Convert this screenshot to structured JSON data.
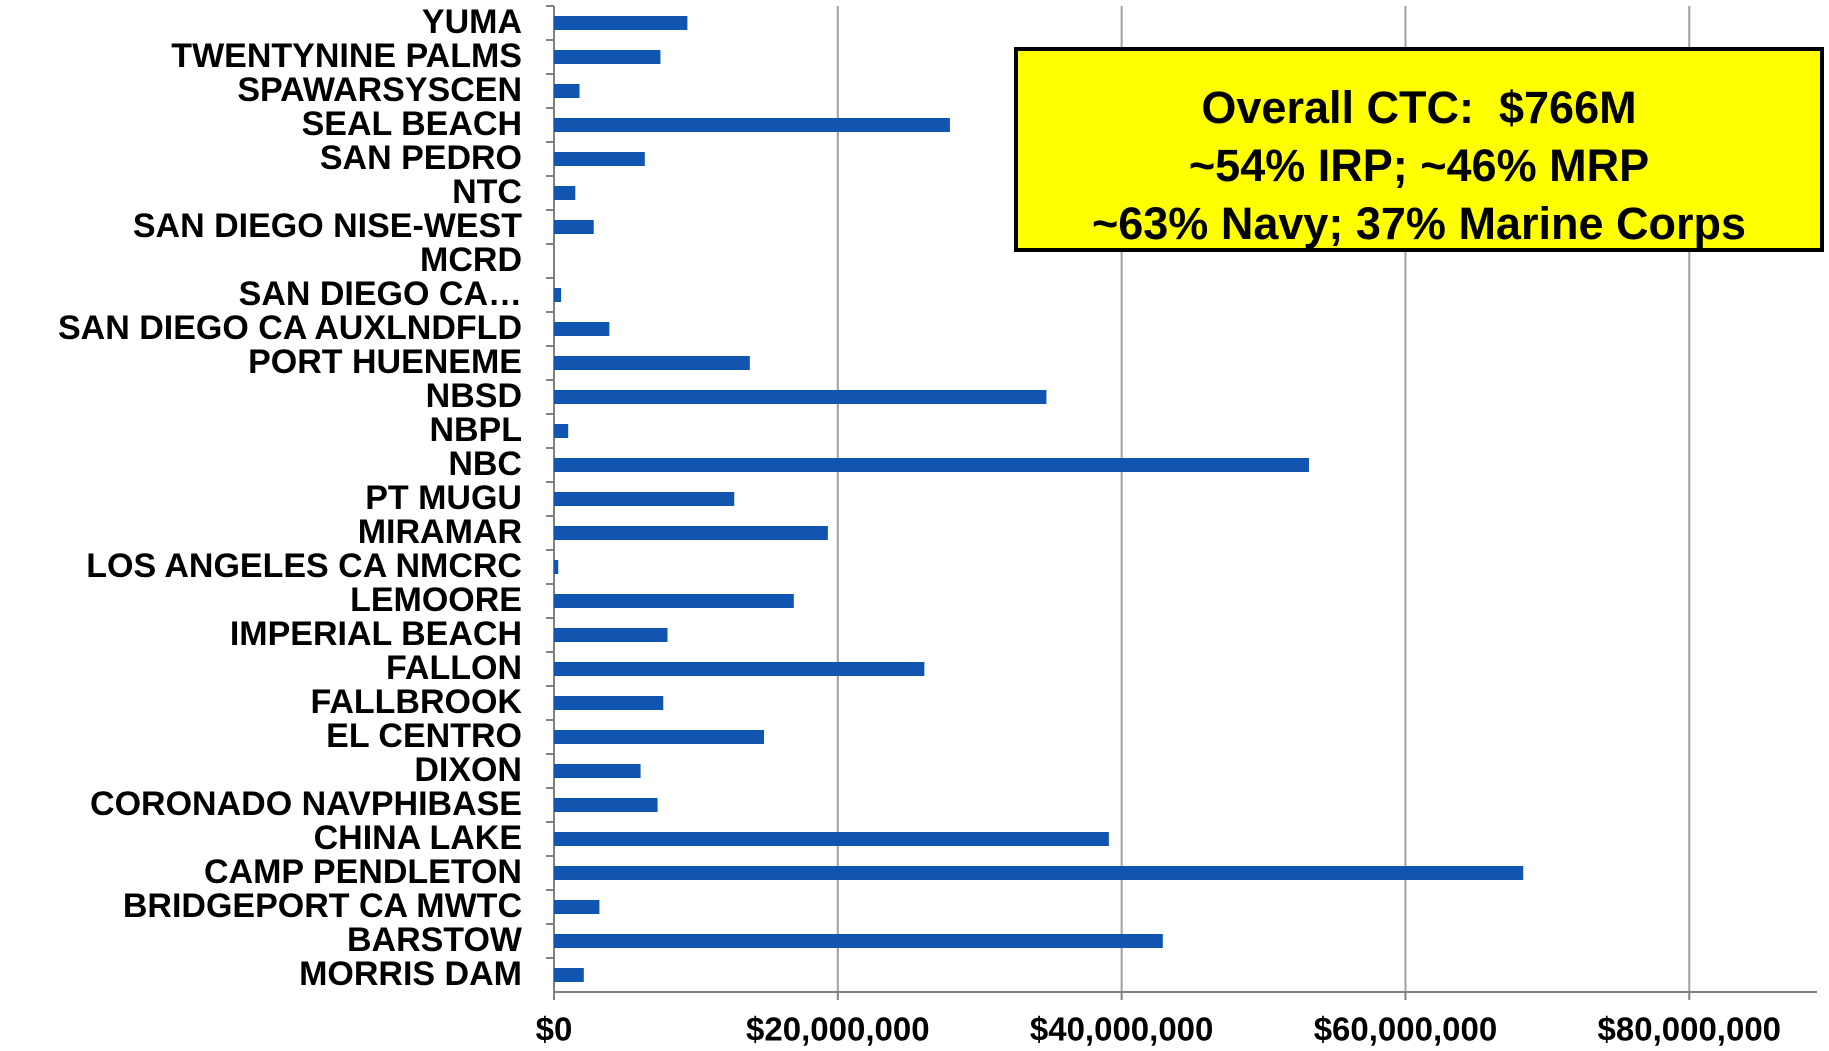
{
  "chart_data": {
    "type": "bar",
    "orientation": "horizontal",
    "categories": [
      "YUMA",
      "TWENTYNINE PALMS",
      "SPAWARSYSCEN",
      "SEAL BEACH",
      "SAN PEDRO",
      "NTC",
      "SAN DIEGO NISE-WEST",
      "MCRD",
      "SAN DIEGO CA…",
      "SAN DIEGO CA AUXLNDFLD",
      "PORT HUENEME",
      "NBSD",
      "NBPL",
      "NBC",
      "PT MUGU",
      "MIRAMAR",
      "LOS ANGELES CA NMCRC",
      "LEMOORE",
      "IMPERIAL BEACH",
      "FALLON",
      "FALLBROOK",
      "EL CENTRO",
      "DIXON",
      "CORONADO NAVPHIBASE",
      "CHINA LAKE",
      "CAMP PENDLETON",
      "BRIDGEPORT CA MWTC",
      "BARSTOW",
      "MORRIS DAM"
    ],
    "values": [
      9400000,
      7500000,
      1800000,
      27900000,
      6400000,
      1500000,
      2800000,
      0,
      500000,
      3900000,
      13800000,
      34700000,
      1000000,
      53200000,
      12700000,
      19300000,
      300000,
      16900000,
      8000000,
      26100000,
      7700000,
      14800000,
      6100000,
      7300000,
      39100000,
      68300000,
      3200000,
      42900000,
      2100000
    ],
    "color": "#1155b0",
    "xlim": [
      0,
      89000000
    ],
    "xticks": [
      {
        "value": 0,
        "label": "$0"
      },
      {
        "value": 20000000,
        "label": "$20,000,000"
      },
      {
        "value": 40000000,
        "label": "$40,000,000"
      },
      {
        "value": 60000000,
        "label": "$60,000,000"
      },
      {
        "value": 80000000,
        "label": "$80,000,000"
      }
    ],
    "grid": true,
    "annotation": [
      "Overall CTC:  $766M",
      "~54% IRP; ~46% MRP",
      "~63% Navy; 37% Marine Corps"
    ]
  }
}
